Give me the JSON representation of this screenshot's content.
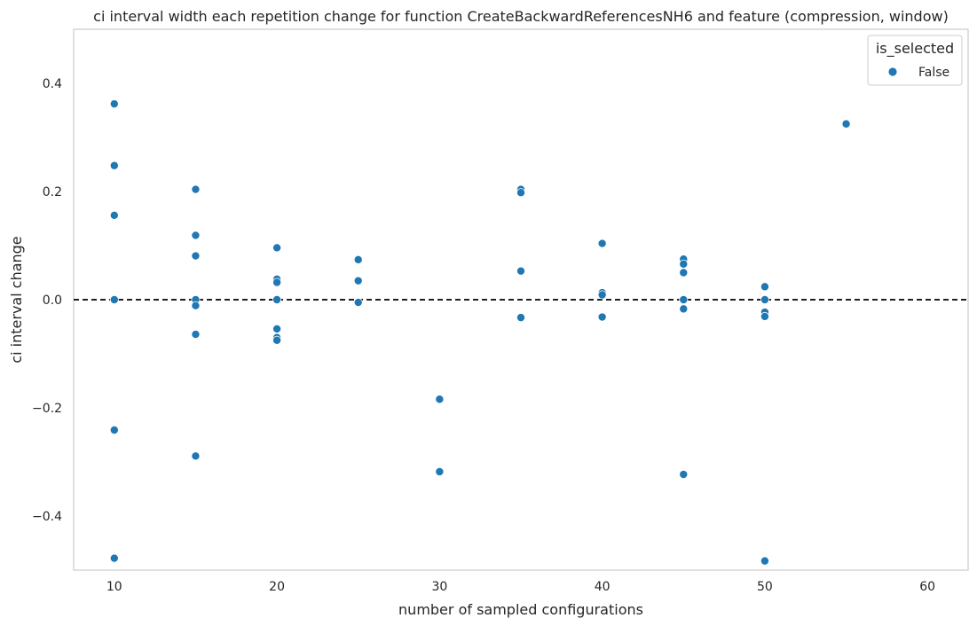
{
  "chart_data": {
    "type": "scatter",
    "title": "ci interval width each repetition change for function CreateBackwardReferencesNH6 and feature (compression, window)",
    "xlabel": "number of sampled configurations",
    "ylabel": "ci interval change",
    "xlim": [
      7.5,
      62.5
    ],
    "ylim": [
      -0.5,
      0.5
    ],
    "x_ticks": [
      10,
      20,
      30,
      40,
      50,
      60
    ],
    "y_ticks": [
      -0.4,
      -0.2,
      0.0,
      0.2,
      0.4
    ],
    "x_tick_labels": [
      "10",
      "20",
      "30",
      "40",
      "50",
      "60"
    ],
    "y_tick_labels": [
      "−0.4",
      "−0.2",
      "0.0",
      "0.2",
      "0.4"
    ],
    "grid": false,
    "reference_line": {
      "y": 0,
      "style": "dashed",
      "color": "#000000"
    },
    "legend": {
      "title": "is_selected",
      "placement": "top-right"
    },
    "series": [
      {
        "name": "False",
        "color": "#1f77b4",
        "points": [
          [
            10,
            0.362
          ],
          [
            10,
            0.248
          ],
          [
            10,
            0.156
          ],
          [
            10,
            0.0
          ],
          [
            10,
            -0.241
          ],
          [
            10,
            -0.478
          ],
          [
            15,
            0.204
          ],
          [
            15,
            0.119
          ],
          [
            15,
            0.081
          ],
          [
            15,
            0.0
          ],
          [
            15,
            -0.011
          ],
          [
            15,
            -0.064
          ],
          [
            15,
            -0.289
          ],
          [
            20,
            0.096
          ],
          [
            20,
            0.038
          ],
          [
            20,
            0.032
          ],
          [
            20,
            0.0
          ],
          [
            20,
            -0.054
          ],
          [
            20,
            -0.07
          ],
          [
            20,
            -0.075
          ],
          [
            25,
            0.074
          ],
          [
            25,
            0.035
          ],
          [
            25,
            -0.005
          ],
          [
            30,
            -0.184
          ],
          [
            30,
            -0.318
          ],
          [
            35,
            0.204
          ],
          [
            35,
            0.198
          ],
          [
            35,
            0.053
          ],
          [
            35,
            -0.033
          ],
          [
            40,
            0.104
          ],
          [
            40,
            0.013
          ],
          [
            40,
            0.009
          ],
          [
            40,
            -0.032
          ],
          [
            45,
            0.075
          ],
          [
            45,
            0.066
          ],
          [
            45,
            0.05
          ],
          [
            45,
            0.0
          ],
          [
            45,
            -0.017
          ],
          [
            45,
            -0.323
          ],
          [
            50,
            0.024
          ],
          [
            50,
            0.0
          ],
          [
            50,
            -0.023
          ],
          [
            50,
            -0.031
          ],
          [
            50,
            -0.483
          ],
          [
            55,
            0.325
          ]
        ]
      }
    ]
  }
}
